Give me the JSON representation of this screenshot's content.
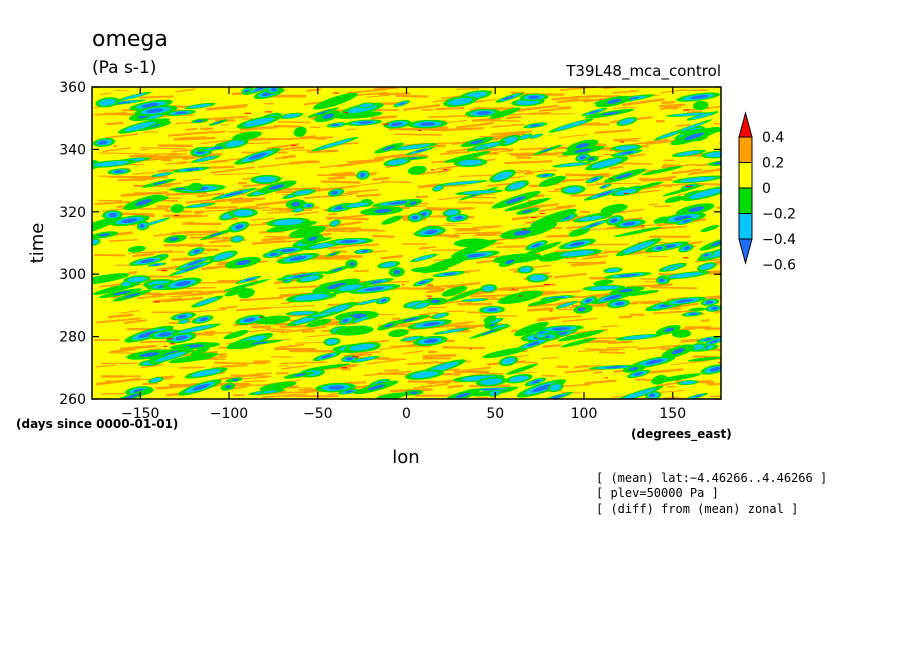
{
  "chart_data": {
    "type": "heatmap",
    "title": "omega",
    "units": "(Pa s-1)",
    "run_name": "T39L48_mca_control",
    "xlabel": "lon",
    "ylabel": "time",
    "x_units": "(degrees_east)",
    "y_units": "(days since 0000-01-01)",
    "xlim": [
      -177.1875,
      177.1875
    ],
    "ylim": [
      260,
      360
    ],
    "x_ticks": [
      -150,
      -100,
      -50,
      0,
      50,
      100,
      150
    ],
    "x_tick_labels": [
      "−150",
      "−100",
      "−50",
      "0",
      "50",
      "100",
      "150"
    ],
    "y_ticks": [
      260,
      280,
      300,
      320,
      340,
      360
    ],
    "y_tick_labels": [
      "260",
      "280",
      "300",
      "320",
      "340",
      "360"
    ],
    "colorbar": {
      "levels": [
        -0.6,
        -0.4,
        -0.2,
        0,
        0.2,
        0.4
      ],
      "level_labels": [
        "−0.6",
        "−0.4",
        "−0.2",
        "0",
        "0.2",
        "0.4"
      ],
      "colors": [
        "#1e6eff",
        "#00c8ff",
        "#00dc00",
        "#ffff00",
        "#ffa000",
        "#ff0000"
      ],
      "under_color": "#1e6eff",
      "over_color": "#ff0000",
      "extend": "both"
    },
    "background_color": "#ffff00",
    "notes": [
      "[ (mean) lat:−4.46266..4.46266 ]",
      "[ plev=50000 Pa ]",
      "[ (diff) from (mean) zonal ]"
    ]
  }
}
